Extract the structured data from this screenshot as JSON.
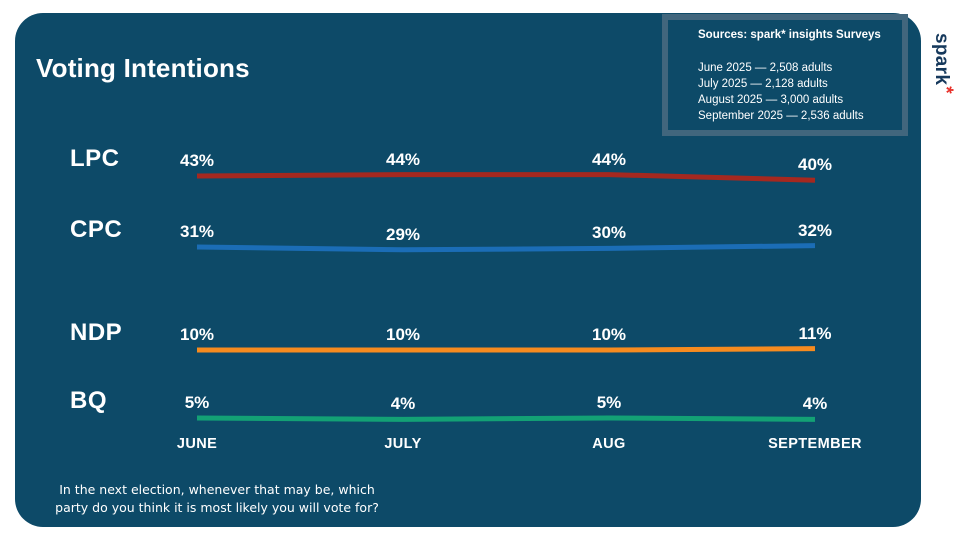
{
  "card": {
    "title": "Voting Intentions",
    "background_color": "#0d4a68"
  },
  "sources_box": {
    "title": "Sources: spark* insights Surveys",
    "lines": [
      "June 2025 — 2,508 adults",
      "July 2025 — 2,128 adults",
      "August 2025 — 3,000 adults",
      "September 2025 — 2,536 adults"
    ],
    "border_color": "#41667d"
  },
  "logo": {
    "text": "spark",
    "asterisk": "*",
    "text_color": "#16395c",
    "asterisk_color": "#e8312a"
  },
  "chart_data": {
    "type": "line",
    "title": "Voting Intentions",
    "categories": [
      "JUNE",
      "JULY",
      "AUG",
      "SEPTEMBER"
    ],
    "series": [
      {
        "name": "LPC",
        "values": [
          43,
          44,
          44,
          40
        ],
        "color": "#a5281f"
      },
      {
        "name": "CPC",
        "values": [
          31,
          29,
          30,
          32
        ],
        "color": "#1b6db6"
      },
      {
        "name": "NDP",
        "values": [
          10,
          10,
          10,
          11
        ],
        "color": "#f68b1f"
      },
      {
        "name": "BQ",
        "values": [
          5,
          4,
          5,
          4
        ],
        "color": "#13a175"
      }
    ],
    "value_suffix": "%",
    "value_labels_shown": true,
    "grid": false,
    "legend_position": "left-row-labels",
    "x_axis_labels_position": "bottom"
  },
  "question": {
    "line1": "In the next election, whenever that may be, which",
    "line2": "party do you think it is most likely you will vote for?"
  }
}
